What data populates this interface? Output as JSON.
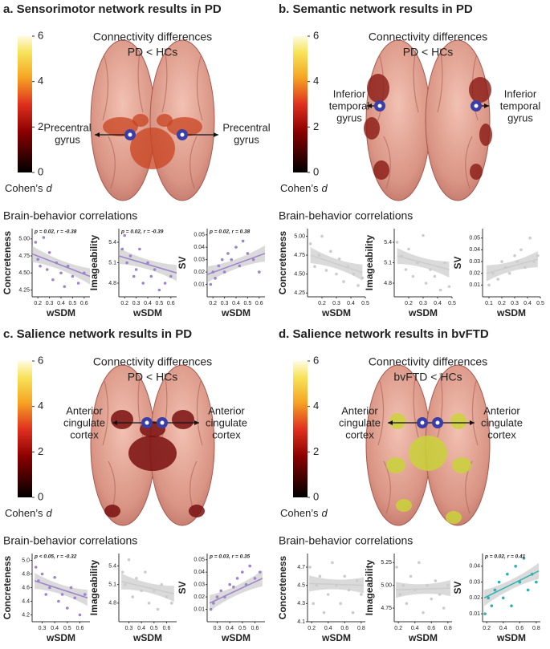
{
  "panels": [
    {
      "title": "a. Sensorimotor network results in PD",
      "heading": [
        "Connectivity differences",
        "PD < HCs"
      ],
      "left_label": [
        "Precentral",
        "gyrus"
      ],
      "right_label": [
        "Precentral",
        "gyrus"
      ],
      "colorbar": {
        "lim": [
          0,
          6
        ],
        "ticks": [
          0,
          2,
          4,
          6
        ],
        "label": "Cohen’s",
        "label_italic": "d"
      },
      "subtitle": "Brain-behavior correlations",
      "plots": [
        {
          "type": "scatter",
          "ylabel": "Concreteness",
          "xlabel": "wSDM",
          "annotation": "p = 0.02, r = -0.38",
          "color": "#9d83cc",
          "xlim": [
            0.15,
            0.65
          ],
          "ylim": [
            4.15,
            5.15
          ],
          "xticks": [
            0.2,
            0.3,
            0.4,
            0.5,
            0.6
          ],
          "yticks": [
            4.25,
            {
              "value": 4.5,
              "label": "4.50"
            },
            4.75,
            {
              "value": 5,
              "label": "5.00"
            }
          ],
          "x": [
            0.18,
            0.2,
            0.22,
            0.25,
            0.28,
            0.3,
            0.33,
            0.36,
            0.4,
            0.43,
            0.46,
            0.5,
            0.55,
            0.6
          ],
          "y": [
            4.95,
            4.7,
            4.6,
            5.02,
            4.55,
            4.8,
            4.4,
            4.65,
            4.5,
            4.3,
            4.6,
            4.45,
            4.35,
            4.5
          ],
          "fit": {
            "x": [
              0.15,
              0.65
            ],
            "y": [
              4.78,
              4.45
            ]
          }
        },
        {
          "type": "scatter",
          "ylabel": "Imageability",
          "xlabel": "wSDM",
          "annotation": "p = 0.02, r = -0.39",
          "color": "#9d83cc",
          "xlim": [
            0.15,
            0.65
          ],
          "ylim": [
            4.6,
            5.6
          ],
          "xticks": [
            0.2,
            0.3,
            0.4,
            0.5,
            0.6
          ],
          "yticks": [
            4.8,
            5.1,
            5.4
          ],
          "x": [
            0.18,
            0.2,
            0.22,
            0.25,
            0.28,
            0.3,
            0.33,
            0.36,
            0.4,
            0.43,
            0.46,
            0.5,
            0.55,
            0.6
          ],
          "y": [
            5.3,
            5.5,
            5.1,
            5.2,
            4.9,
            5.0,
            5.3,
            4.8,
            5.1,
            4.9,
            5.0,
            4.7,
            4.8,
            4.9
          ],
          "fit": {
            "x": [
              0.15,
              0.65
            ],
            "y": [
              5.2,
              4.95
            ]
          }
        },
        {
          "type": "scatter",
          "ylabel": "SV",
          "xlabel": "wSDM",
          "annotation": "p = 0.02, r = 0.38",
          "color": "#9d83cc",
          "xlim": [
            0.15,
            0.65
          ],
          "ylim": [
            0,
            0.055
          ],
          "xticks": [
            0.2,
            0.3,
            0.4,
            0.5,
            0.6
          ],
          "yticks": [
            0.01,
            0.02,
            0.03,
            0.04,
            0.05
          ],
          "x": [
            0.18,
            0.2,
            0.22,
            0.25,
            0.28,
            0.3,
            0.33,
            0.36,
            0.4,
            0.43,
            0.46,
            0.5,
            0.55,
            0.6
          ],
          "y": [
            0.01,
            0.02,
            0.015,
            0.025,
            0.03,
            0.02,
            0.035,
            0.03,
            0.04,
            0.025,
            0.045,
            0.035,
            0.03,
            0.02
          ],
          "fit": {
            "x": [
              0.15,
              0.65
            ],
            "y": [
              0.018,
              0.035
            ]
          }
        }
      ]
    },
    {
      "title": "b. Semantic network results in PD",
      "heading": [
        "Connectivity differences",
        "PD < HCs"
      ],
      "left_label": [
        "Inferior",
        "temporal",
        "gyrus"
      ],
      "right_label": [
        "Inferior",
        "temporal",
        "gyrus"
      ],
      "colorbar": {
        "lim": [
          0,
          6
        ],
        "ticks": [
          0,
          2,
          4,
          6
        ],
        "label": "Cohen’s",
        "label_italic": "d"
      },
      "subtitle": "Brain-behavior correlations",
      "plots": [
        {
          "type": "scatter",
          "ylabel": "Concreteness",
          "xlabel": "wSDM",
          "color": "#cccccc",
          "xlim": [
            0.1,
            0.5
          ],
          "ylim": [
            4.2,
            5.1
          ],
          "xticks": [
            0.2,
            0.3,
            0.4,
            0.5
          ],
          "yticks": [
            4.25,
            {
              "value": 4.5,
              "label": "4.50"
            },
            4.75,
            {
              "value": 5,
              "label": "5.00"
            }
          ],
          "x": [
            0.12,
            0.15,
            0.18,
            0.2,
            0.23,
            0.26,
            0.3,
            0.32,
            0.35,
            0.38,
            0.42,
            0.45,
            0.48
          ],
          "y": [
            4.9,
            4.6,
            4.75,
            5.0,
            4.55,
            4.8,
            4.5,
            4.7,
            4.4,
            4.6,
            4.5,
            4.35,
            4.45
          ],
          "fit": {
            "x": [
              0.12,
              0.48
            ],
            "y": [
              4.75,
              4.52
            ]
          }
        },
        {
          "type": "scatter",
          "ylabel": "Imageability",
          "xlabel": "wSDM",
          "color": "#cccccc",
          "xlim": [
            0.1,
            0.5
          ],
          "ylim": [
            4.6,
            5.6
          ],
          "xticks": [
            0.2,
            0.3,
            0.4,
            0.5
          ],
          "yticks": [
            4.8,
            5.1,
            5.4
          ],
          "x": [
            0.12,
            0.15,
            0.18,
            0.2,
            0.23,
            0.26,
            0.3,
            0.32,
            0.35,
            0.38,
            0.42,
            0.45,
            0.48
          ],
          "y": [
            5.4,
            5.2,
            5.0,
            5.3,
            4.9,
            5.1,
            5.5,
            4.8,
            5.0,
            4.9,
            4.7,
            5.1,
            4.75
          ],
          "fit": {
            "x": [
              0.12,
              0.48
            ],
            "y": [
              5.2,
              5.0
            ]
          }
        },
        {
          "type": "scatter",
          "ylabel": "SV",
          "xlabel": "wSDM",
          "color": "#cccccc",
          "xlim": [
            0.05,
            0.5
          ],
          "ylim": [
            0,
            0.058
          ],
          "xticks": [
            0.1,
            0.2,
            0.3,
            0.4,
            0.5
          ],
          "yticks": [
            0.01,
            0.02,
            0.03,
            0.04,
            0.05
          ],
          "x": [
            0.1,
            0.13,
            0.17,
            0.2,
            0.23,
            0.26,
            0.3,
            0.32,
            0.35,
            0.38,
            0.42,
            0.45,
            0.48
          ],
          "y": [
            0.01,
            0.02,
            0.015,
            0.03,
            0.025,
            0.02,
            0.035,
            0.03,
            0.04,
            0.025,
            0.05,
            0.03,
            0.035
          ],
          "fit": {
            "x": [
              0.08,
              0.48
            ],
            "y": [
              0.02,
              0.032
            ]
          }
        }
      ]
    },
    {
      "title": "c. Salience network results in PD",
      "heading": [
        "Connectivity differences",
        "PD < HCs"
      ],
      "left_label": [
        "Anterior",
        "cingulate",
        "cortex"
      ],
      "right_label": [
        "Anterior",
        "cingulate",
        "cortex"
      ],
      "colorbar": {
        "lim": [
          0,
          6
        ],
        "ticks": [
          0,
          2,
          4,
          6
        ],
        "label": "Cohen’s",
        "label_italic": "d"
      },
      "subtitle": "Brain-behavior correlations",
      "plots": [
        {
          "type": "scatter",
          "ylabel": "Concreteness",
          "xlabel": "wSDM",
          "annotation": "p < 0.05, r = -0.32",
          "color": "#9d83cc",
          "xlim": [
            0.22,
            0.68
          ],
          "ylim": [
            4.1,
            5.1
          ],
          "xticks": [
            0.3,
            0.4,
            0.5,
            0.6
          ],
          "yticks": [
            4.2,
            4.4,
            4.6,
            4.8,
            {
              "value": 5,
              "label": "5.0"
            }
          ],
          "x": [
            0.25,
            0.27,
            0.3,
            0.33,
            0.36,
            0.4,
            0.43,
            0.46,
            0.5,
            0.53,
            0.56,
            0.6,
            0.64
          ],
          "y": [
            4.9,
            4.7,
            4.8,
            4.5,
            4.6,
            4.75,
            4.4,
            4.5,
            4.3,
            4.6,
            4.45,
            4.2,
            4.5
          ],
          "fit": {
            "x": [
              0.24,
              0.66
            ],
            "y": [
              4.7,
              4.45
            ]
          }
        },
        {
          "type": "scatter",
          "ylabel": "Imageability",
          "xlabel": "wSDM",
          "color": "#cccccc",
          "xlim": [
            0.22,
            0.68
          ],
          "ylim": [
            4.5,
            5.6
          ],
          "xticks": [
            0.3,
            0.4,
            0.5,
            0.6
          ],
          "yticks": [
            4.8,
            5.1,
            5.4
          ],
          "x": [
            0.25,
            0.27,
            0.3,
            0.33,
            0.36,
            0.4,
            0.43,
            0.46,
            0.5,
            0.53,
            0.56,
            0.6,
            0.64
          ],
          "y": [
            5.3,
            5.1,
            5.5,
            4.9,
            5.2,
            5.0,
            5.3,
            4.8,
            5.0,
            4.7,
            5.1,
            4.9,
            4.8
          ],
          "fit": {
            "x": [
              0.24,
              0.66
            ],
            "y": [
              5.15,
              4.95
            ]
          }
        },
        {
          "type": "scatter",
          "ylabel": "SV",
          "xlabel": "wSDM",
          "annotation": "p = 0.03, r = 0.35",
          "color": "#9d83cc",
          "xlim": [
            0.22,
            0.68
          ],
          "ylim": [
            0,
            0.055
          ],
          "xticks": [
            0.3,
            0.4,
            0.5,
            0.6
          ],
          "yticks": [
            0.01,
            0.02,
            0.03,
            0.04,
            0.05
          ],
          "x": [
            0.25,
            0.27,
            0.3,
            0.33,
            0.36,
            0.4,
            0.43,
            0.46,
            0.5,
            0.53,
            0.56,
            0.6,
            0.64
          ],
          "y": [
            0.01,
            0.015,
            0.02,
            0.025,
            0.02,
            0.03,
            0.028,
            0.035,
            0.04,
            0.03,
            0.045,
            0.035,
            0.04
          ],
          "fit": {
            "x": [
              0.24,
              0.66
            ],
            "y": [
              0.015,
              0.035
            ]
          }
        }
      ]
    },
    {
      "title": "d. Salience network results in bvFTD",
      "heading": [
        "Connectivity differences",
        "bvFTD < HCs"
      ],
      "left_label": [
        "Anterior",
        "cingulate",
        "cortex"
      ],
      "right_label": [
        "Anterior",
        "cingulate",
        "cortex"
      ],
      "colorbar": {
        "lim": [
          0,
          6
        ],
        "ticks": [
          0,
          2,
          4,
          6
        ],
        "label": "Cohen’s",
        "label_italic": "d"
      },
      "subtitle": "Brain-behavior correlations",
      "plots": [
        {
          "type": "scatter",
          "ylabel": "Concreteness",
          "xlabel": "wSDM",
          "color": "#cccccc",
          "xlim": [
            0.15,
            0.85
          ],
          "ylim": [
            4.1,
            4.85
          ],
          "xticks": [
            0.2,
            0.4,
            0.6,
            0.8
          ],
          "yticks": [
            4.1,
            4.3,
            4.5,
            4.7
          ],
          "x": [
            0.18,
            0.22,
            0.26,
            0.3,
            0.35,
            0.4,
            0.45,
            0.5,
            0.55,
            0.6,
            0.65,
            0.7,
            0.75,
            0.8
          ],
          "y": [
            4.7,
            4.3,
            4.5,
            4.6,
            4.2,
            4.4,
            4.75,
            4.5,
            4.3,
            4.6,
            4.45,
            4.2,
            4.55,
            4.4
          ],
          "fit": {
            "x": [
              0.17,
              0.83
            ],
            "y": [
              4.52,
              4.5
            ]
          }
        },
        {
          "type": "scatter",
          "ylabel": "Imageability",
          "xlabel": "wSDM",
          "color": "#cccccc",
          "xlim": [
            0.15,
            0.85
          ],
          "ylim": [
            4.6,
            5.35
          ],
          "xticks": [
            0.2,
            0.4,
            0.6,
            0.8
          ],
          "yticks": [
            4.75,
            {
              "value": 5,
              "label": "5.00"
            },
            5.25
          ],
          "x": [
            0.18,
            0.22,
            0.26,
            0.3,
            0.35,
            0.4,
            0.45,
            0.5,
            0.55,
            0.6,
            0.65,
            0.7,
            0.75,
            0.8
          ],
          "y": [
            5.2,
            4.9,
            5.0,
            4.8,
            5.1,
            4.95,
            5.25,
            4.7,
            5.0,
            4.85,
            5.05,
            4.9,
            4.75,
            5.0
          ],
          "fit": {
            "x": [
              0.17,
              0.83
            ],
            "y": [
              4.95,
              4.97
            ]
          }
        },
        {
          "type": "scatter",
          "ylabel": "SV",
          "xlabel": "wSDM",
          "annotation": "p = 0.02, r = 0.41",
          "color": "#2bb3b1",
          "xlim": [
            0.15,
            0.85
          ],
          "ylim": [
            0.005,
            0.048
          ],
          "xticks": [
            0.2,
            0.4,
            0.6,
            0.8
          ],
          "yticks": [
            0.01,
            0.02,
            0.03,
            0.04
          ],
          "x": [
            0.18,
            0.22,
            0.26,
            0.3,
            0.35,
            0.4,
            0.45,
            0.5,
            0.55,
            0.6,
            0.65,
            0.7,
            0.75,
            0.8
          ],
          "y": [
            0.01,
            0.02,
            0.015,
            0.025,
            0.03,
            0.02,
            0.035,
            0.015,
            0.04,
            0.03,
            0.045,
            0.025,
            0.035,
            0.03
          ],
          "fit": {
            "x": [
              0.17,
              0.83
            ],
            "y": [
              0.02,
              0.037
            ]
          }
        }
      ]
    }
  ]
}
